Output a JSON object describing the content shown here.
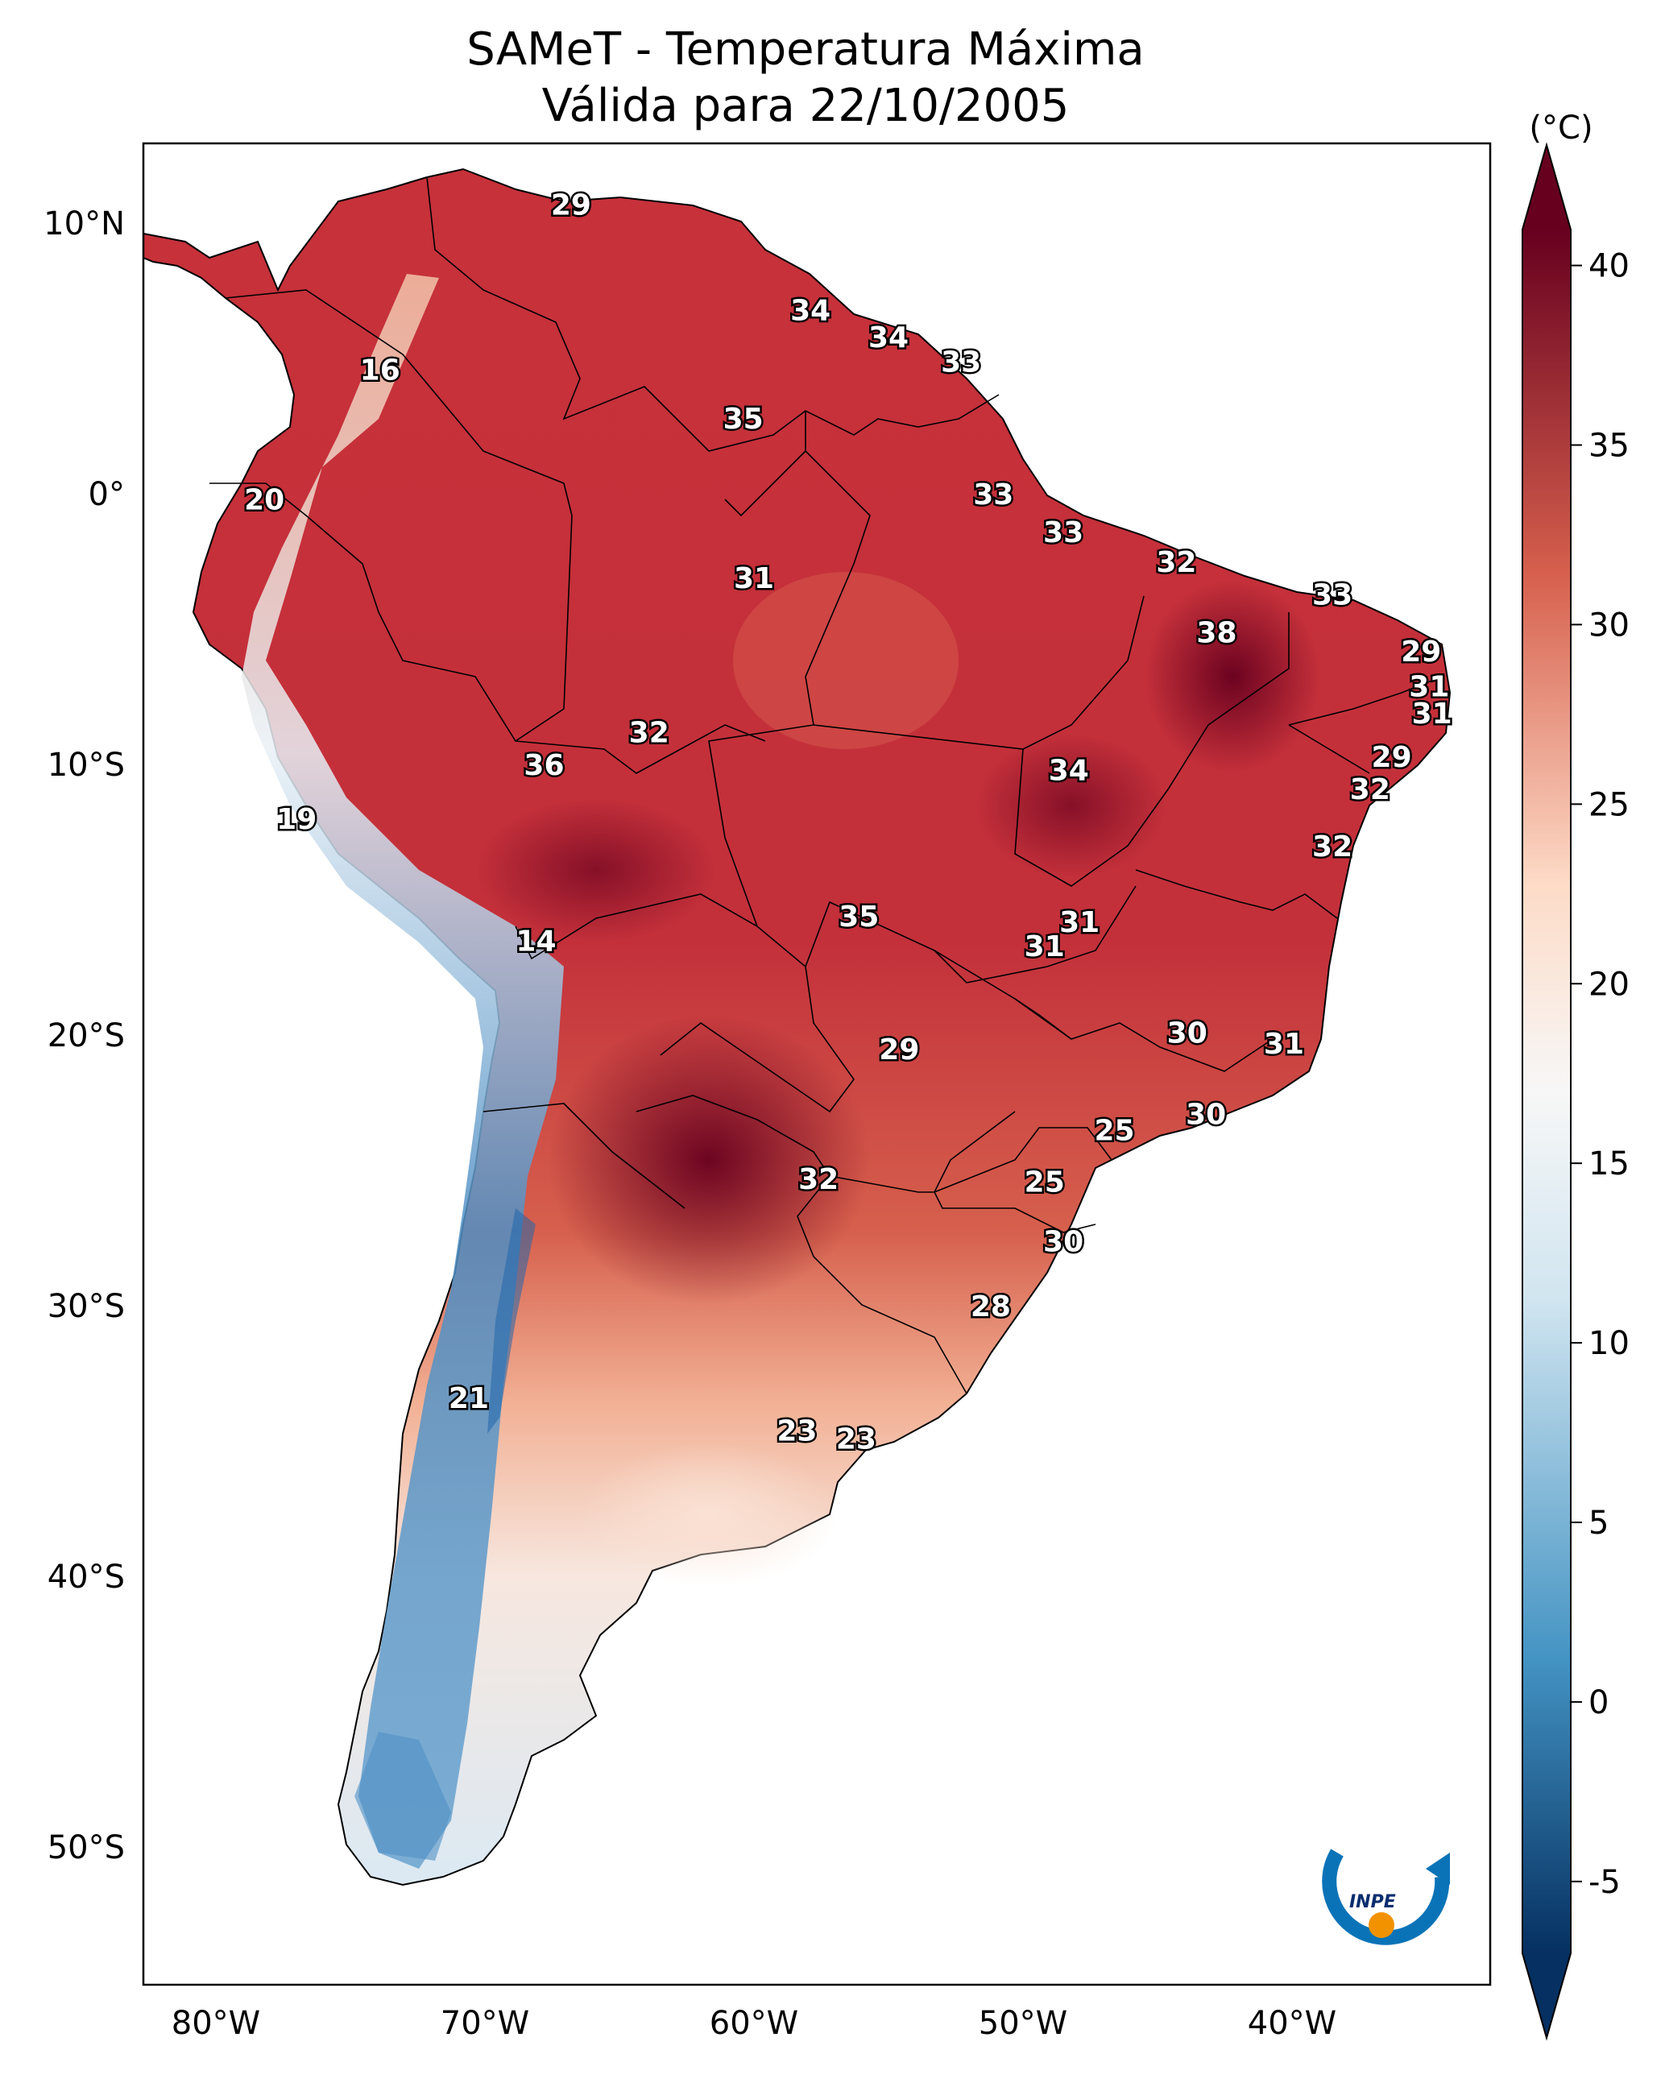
{
  "title": {
    "line1": "SAMeT - Temperatura Máxima",
    "line2": "Válida para 22/10/2005"
  },
  "colorbar": {
    "unit_label": "(°C)",
    "ticks": [
      "40",
      "35",
      "30",
      "25",
      "20",
      "15",
      "10",
      "5",
      "0",
      "-5"
    ],
    "range": [
      -7,
      41
    ],
    "colors": {
      "cold_end": "#053061",
      "cool": "#4393c3",
      "light_blue": "#d1e5f0",
      "mid": "#f7f7f7",
      "light_red": "#fddbc7",
      "warm": "#d6604d",
      "hot_end": "#67001f"
    }
  },
  "axes": {
    "lat_labels": [
      "10°N",
      "0°",
      "10°S",
      "20°S",
      "30°S",
      "40°S",
      "50°S"
    ],
    "lon_labels": [
      "80°W",
      "70°W",
      "60°W",
      "50°W",
      "40°W"
    ]
  },
  "station_labels": [
    {
      "text": "29",
      "lon": -66.8,
      "lat": 10.7
    },
    {
      "text": "16",
      "lon": -73.9,
      "lat": 4.6
    },
    {
      "text": "34",
      "lon": -57.9,
      "lat": 6.8
    },
    {
      "text": "34",
      "lon": -55.0,
      "lat": 5.8
    },
    {
      "text": "33",
      "lon": -52.3,
      "lat": 4.9
    },
    {
      "text": "35",
      "lon": -60.4,
      "lat": 2.8
    },
    {
      "text": "20",
      "lon": -78.2,
      "lat": -0.2
    },
    {
      "text": "33",
      "lon": -51.1,
      "lat": -0.0
    },
    {
      "text": "33",
      "lon": -48.5,
      "lat": -1.4
    },
    {
      "text": "31",
      "lon": -60.0,
      "lat": -3.1
    },
    {
      "text": "32",
      "lon": -44.3,
      "lat": -2.5
    },
    {
      "text": "33",
      "lon": -38.5,
      "lat": -3.7
    },
    {
      "text": "38",
      "lon": -42.8,
      "lat": -5.1
    },
    {
      "text": "29",
      "lon": -35.2,
      "lat": -5.8
    },
    {
      "text": "31",
      "lon": -34.9,
      "lat": -7.1
    },
    {
      "text": "31",
      "lon": -34.8,
      "lat": -8.1
    },
    {
      "text": "32",
      "lon": -63.9,
      "lat": -8.8
    },
    {
      "text": "36",
      "lon": -67.8,
      "lat": -10.0
    },
    {
      "text": "34",
      "lon": -48.3,
      "lat": -10.2
    },
    {
      "text": "29",
      "lon": -36.3,
      "lat": -9.7
    },
    {
      "text": "32",
      "lon": -37.1,
      "lat": -10.9
    },
    {
      "text": "19",
      "lon": -77.0,
      "lat": -12.0
    },
    {
      "text": "32",
      "lon": -38.5,
      "lat": -13.0
    },
    {
      "text": "14",
      "lon": -68.1,
      "lat": -16.5
    },
    {
      "text": "35",
      "lon": -56.1,
      "lat": -15.6
    },
    {
      "text": "31",
      "lon": -47.9,
      "lat": -15.8
    },
    {
      "text": "31",
      "lon": -49.2,
      "lat": -16.7
    },
    {
      "text": "29",
      "lon": -54.6,
      "lat": -20.5
    },
    {
      "text": "30",
      "lon": -43.9,
      "lat": -19.9
    },
    {
      "text": "31",
      "lon": -40.3,
      "lat": -20.3
    },
    {
      "text": "30",
      "lon": -43.2,
      "lat": -22.9
    },
    {
      "text": "25",
      "lon": -46.6,
      "lat": -23.5
    },
    {
      "text": "32",
      "lon": -57.6,
      "lat": -25.3
    },
    {
      "text": "25",
      "lon": -49.2,
      "lat": -25.4
    },
    {
      "text": "30",
      "lon": -48.5,
      "lat": -27.6
    },
    {
      "text": "28",
      "lon": -51.2,
      "lat": -30.0
    },
    {
      "text": "21",
      "lon": -70.6,
      "lat": -33.4
    },
    {
      "text": "23",
      "lon": -58.4,
      "lat": -34.6
    },
    {
      "text": "23",
      "lon": -56.2,
      "lat": -34.9
    }
  ],
  "logo": {
    "text": "INPE"
  }
}
